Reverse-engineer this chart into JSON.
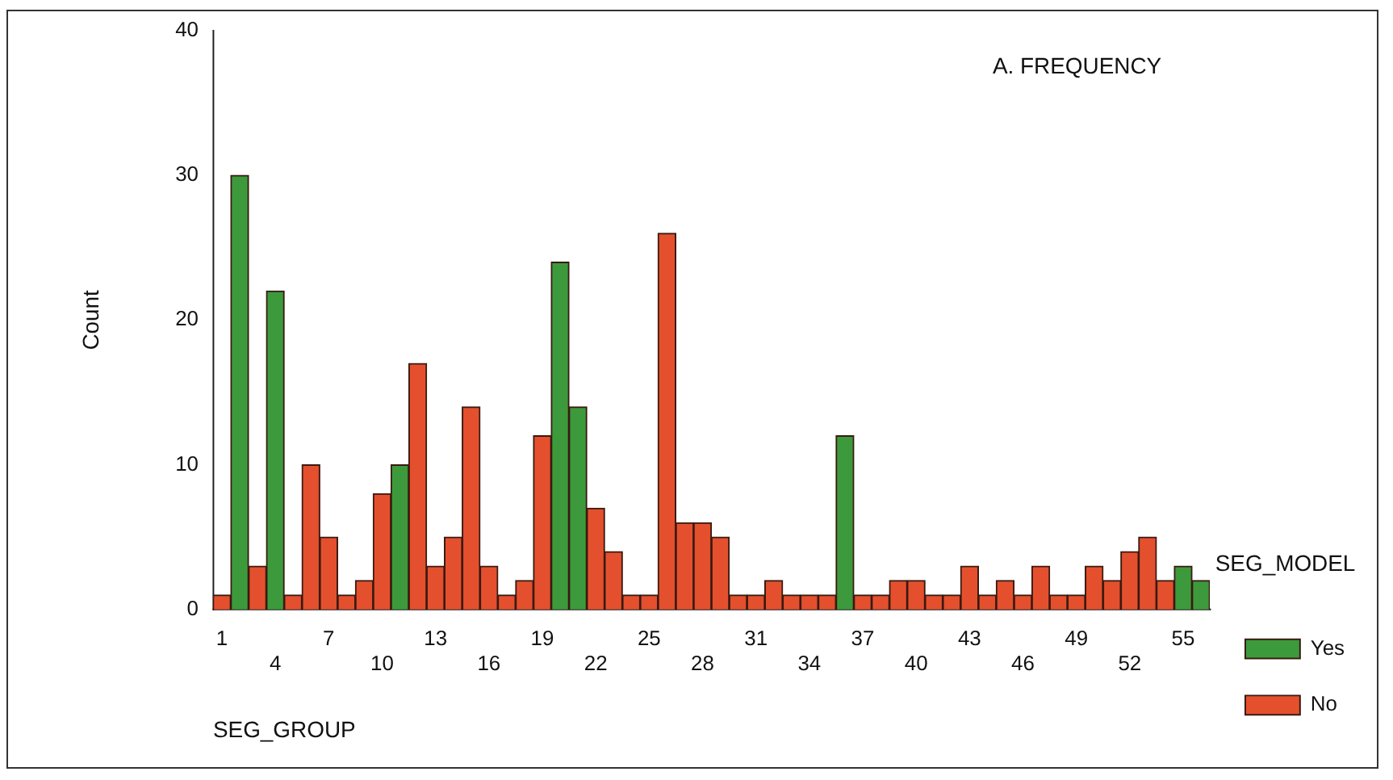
{
  "chart_data": {
    "type": "bar",
    "stacked": true,
    "xlabel": "SEG_GROUP",
    "ylabel": "Count",
    "legend_title": "SEG_MODEL",
    "legend": "right",
    "grid": false,
    "annotations": [
      "A. FREQUENCY"
    ],
    "categories": [
      "1",
      null,
      null,
      "4",
      null,
      null,
      "7",
      null,
      null,
      "10",
      null,
      null,
      "13",
      null,
      null,
      "16",
      null,
      null,
      "19",
      null,
      null,
      "22",
      null,
      null,
      "25",
      null,
      null,
      "28",
      null,
      null,
      "31",
      null,
      null,
      "34",
      null,
      null,
      "37",
      null,
      null,
      "40",
      null,
      null,
      "43",
      null,
      null,
      "46",
      null,
      null,
      "49",
      null,
      null,
      "52",
      null,
      null,
      "55",
      null
    ],
    "ylim": [
      0,
      40
    ],
    "yticks": [
      0,
      10,
      20,
      30,
      40
    ],
    "series": [
      {
        "name": "Yes",
        "color": "#3c9a3c",
        "values": [
          null,
          30,
          null,
          22,
          null,
          null,
          null,
          null,
          null,
          null,
          10,
          null,
          null,
          null,
          null,
          null,
          null,
          null,
          null,
          24,
          14,
          null,
          null,
          null,
          null,
          null,
          null,
          null,
          null,
          null,
          null,
          null,
          null,
          null,
          null,
          12,
          null,
          null,
          null,
          null,
          null,
          null,
          null,
          null,
          null,
          null,
          null,
          null,
          null,
          null,
          null,
          null,
          null,
          null,
          3,
          2
        ]
      },
      {
        "name": "No",
        "color": "#e4502e",
        "values": [
          1,
          null,
          3,
          null,
          1,
          10,
          5,
          1,
          2,
          8,
          null,
          17,
          3,
          5,
          14,
          3,
          1,
          2,
          12,
          null,
          null,
          7,
          4,
          1,
          1,
          26,
          6,
          6,
          5,
          1,
          1,
          2,
          1,
          1,
          1,
          null,
          1,
          1,
          2,
          2,
          1,
          1,
          3,
          1,
          2,
          1,
          3,
          1,
          1,
          3,
          2,
          4,
          5,
          2,
          null,
          null
        ]
      }
    ]
  }
}
